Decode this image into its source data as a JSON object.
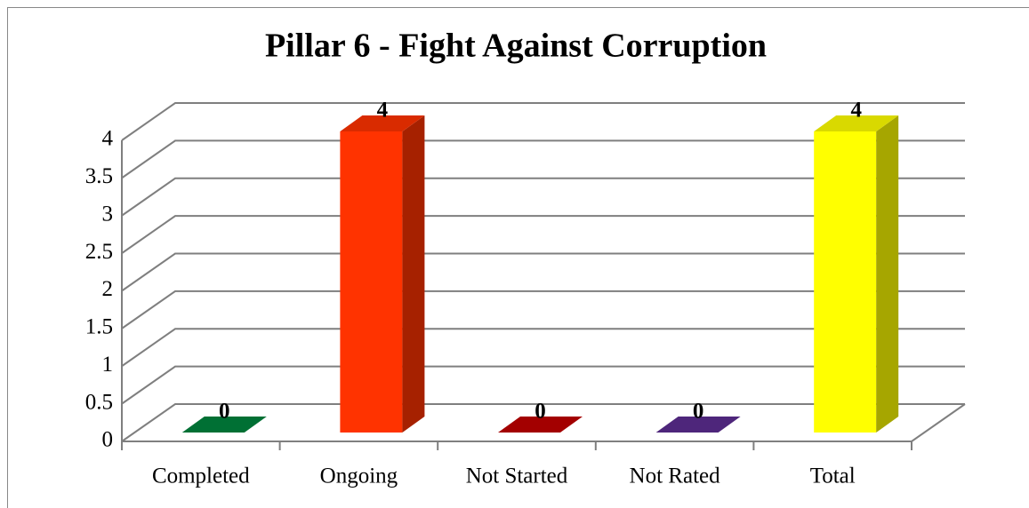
{
  "chart_data": {
    "type": "bar3d",
    "title": "Pillar 6 - Fight Against Corruption",
    "categories": [
      "Completed",
      "Ongoing",
      "Not Started",
      "Not Rated",
      "Total"
    ],
    "values": [
      0,
      4,
      0,
      0,
      4
    ],
    "colors": [
      "#00843d",
      "#ff3300",
      "#c00000",
      "#5c2d91",
      "#ffff00"
    ],
    "ylim": [
      0,
      4
    ],
    "yticks": [
      0,
      0.5,
      1,
      1.5,
      2,
      2.5,
      3,
      3.5,
      4
    ],
    "grid": true
  }
}
